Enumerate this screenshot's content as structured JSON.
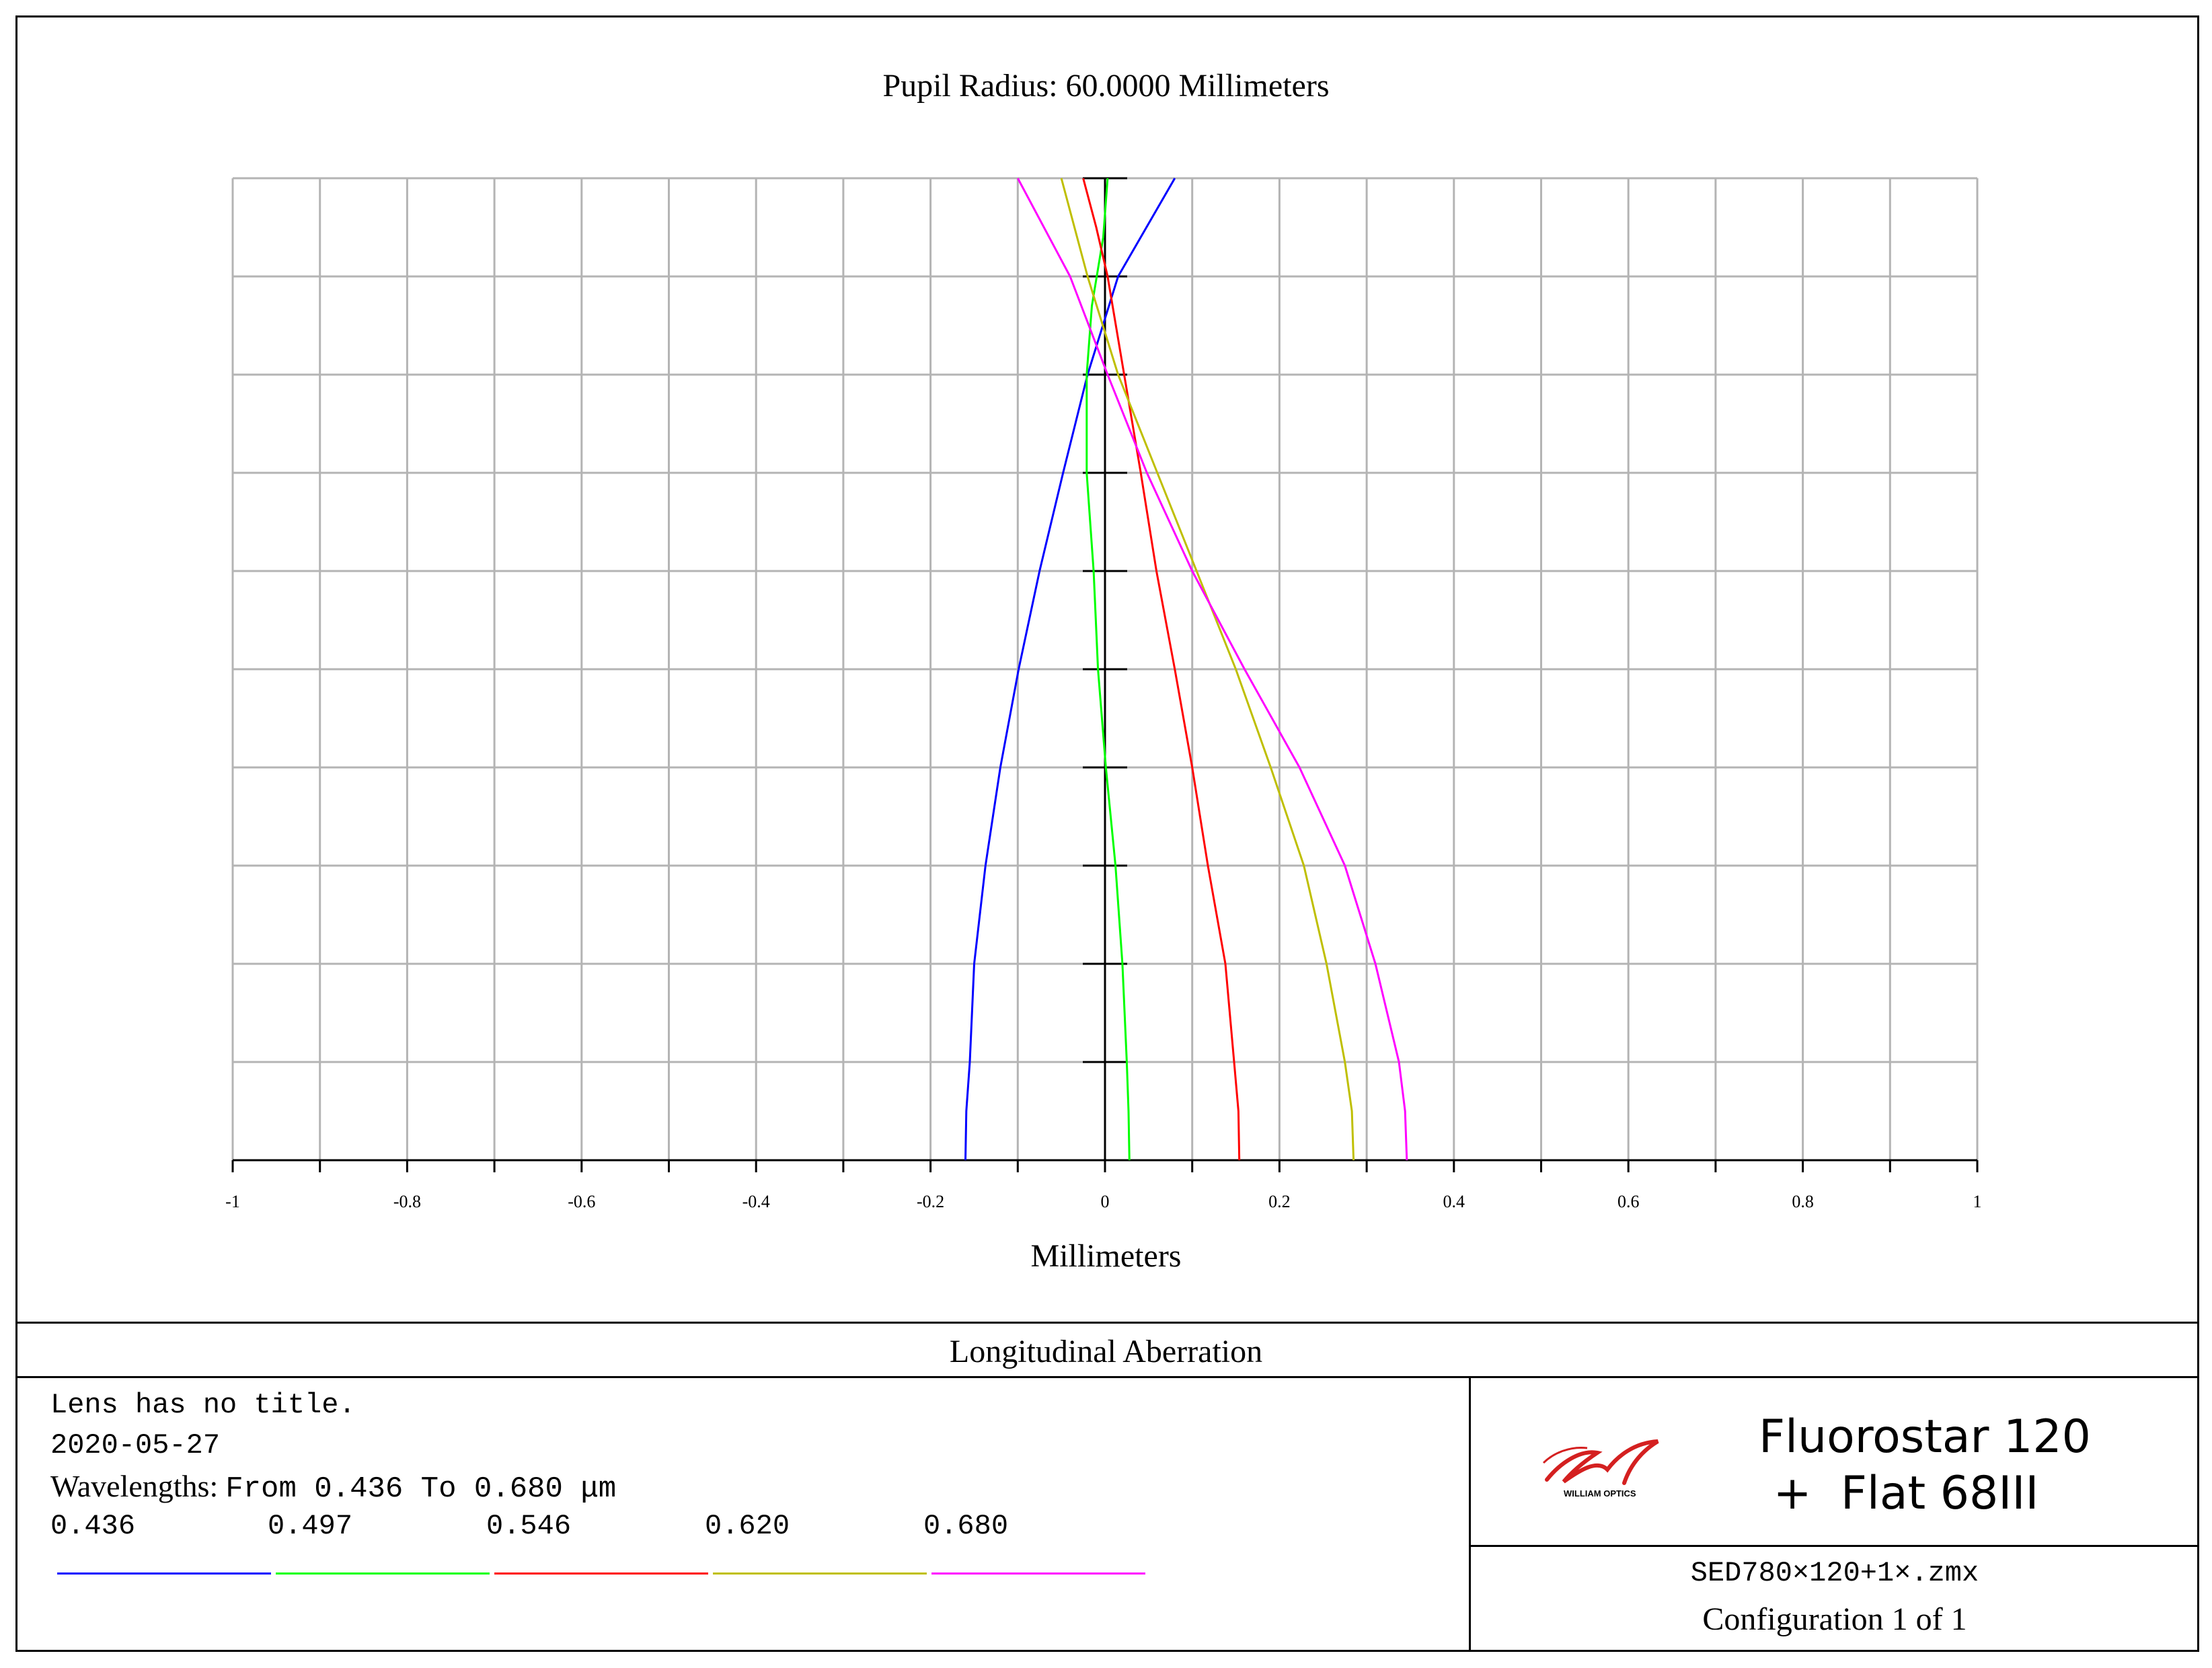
{
  "plot_title": "Pupil Radius:  60.0000  Millimeters",
  "chart_data": {
    "type": "line",
    "xlabel": "Millimeters",
    "ylabel": "",
    "xlim": [
      -1,
      1
    ],
    "ylim": [
      0,
      1
    ],
    "x_ticks": [
      "-1",
      "-0.8",
      "-0.6",
      "-0.4",
      "-0.2",
      "0",
      "0.2",
      "0.4",
      "0.6",
      "0.8",
      "1"
    ],
    "grid": true,
    "series": [
      {
        "name": "0.436",
        "color": "#0000ff",
        "points": [
          [
            -0.16,
            0
          ],
          [
            -0.159,
            0.05
          ],
          [
            -0.155,
            0.1
          ],
          [
            -0.15,
            0.2
          ],
          [
            -0.137,
            0.3
          ],
          [
            -0.12,
            0.4
          ],
          [
            -0.099,
            0.5
          ],
          [
            -0.075,
            0.6
          ],
          [
            -0.048,
            0.7
          ],
          [
            -0.02,
            0.8
          ],
          [
            0.015,
            0.9
          ],
          [
            0.08,
            1.0
          ]
        ]
      },
      {
        "name": "0.497",
        "color": "#00ff00",
        "points": [
          [
            0.028,
            0
          ],
          [
            0.027,
            0.05
          ],
          [
            0.025,
            0.1
          ],
          [
            0.02,
            0.2
          ],
          [
            0.012,
            0.3
          ],
          [
            0.001,
            0.4
          ],
          [
            -0.008,
            0.5
          ],
          [
            -0.013,
            0.6
          ],
          [
            -0.021,
            0.7
          ],
          [
            -0.021,
            0.8
          ],
          [
            -0.015,
            0.87
          ],
          [
            -0.002,
            0.94
          ],
          [
            0.003,
            1.0
          ]
        ]
      },
      {
        "name": "0.546",
        "color": "#ff0000",
        "points": [
          [
            0.154,
            0
          ],
          [
            0.153,
            0.05
          ],
          [
            0.148,
            0.1
          ],
          [
            0.138,
            0.2
          ],
          [
            0.118,
            0.3
          ],
          [
            0.1,
            0.4
          ],
          [
            0.08,
            0.5
          ],
          [
            0.059,
            0.6
          ],
          [
            0.041,
            0.7
          ],
          [
            0.022,
            0.8
          ],
          [
            0.003,
            0.9
          ],
          [
            -0.01,
            0.95
          ],
          [
            -0.025,
            1.0
          ]
        ]
      },
      {
        "name": "0.620",
        "color": "#bfbf00",
        "points": [
          [
            0.285,
            0
          ],
          [
            0.283,
            0.05
          ],
          [
            0.275,
            0.1
          ],
          [
            0.254,
            0.2
          ],
          [
            0.228,
            0.3
          ],
          [
            0.19,
            0.4
          ],
          [
            0.15,
            0.5
          ],
          [
            0.105,
            0.6
          ],
          [
            0.06,
            0.7
          ],
          [
            0.015,
            0.8
          ],
          [
            -0.02,
            0.9
          ],
          [
            -0.05,
            1.0
          ]
        ]
      },
      {
        "name": "0.680",
        "color": "#ff00ff",
        "points": [
          [
            0.346,
            0
          ],
          [
            0.344,
            0.05
          ],
          [
            0.337,
            0.1
          ],
          [
            0.31,
            0.2
          ],
          [
            0.275,
            0.3
          ],
          [
            0.223,
            0.4
          ],
          [
            0.16,
            0.5
          ],
          [
            0.1,
            0.6
          ],
          [
            0.048,
            0.7
          ],
          [
            0.003,
            0.8
          ],
          [
            -0.04,
            0.9
          ],
          [
            -0.1,
            1.0
          ]
        ]
      }
    ]
  },
  "footer": {
    "title": "Longitudinal Aberration",
    "lens_title": "Lens has no title.",
    "date": "2020-05-27",
    "wavelengths_label": "Wavelengths:",
    "wavelengths_range": "From 0.436 To 0.680 μm",
    "legend": [
      {
        "label": "0.436",
        "color": "#0000ff"
      },
      {
        "label": "0.497",
        "color": "#00ff00"
      },
      {
        "label": "0.546",
        "color": "#ff0000"
      },
      {
        "label": "0.620",
        "color": "#bfbf00"
      },
      {
        "label": "0.680",
        "color": "#ff00ff"
      }
    ],
    "logo_text": "WILLIAM OPTICS",
    "design_title": "Fluorostar 120\n +  Flat 68III",
    "file_name": "SED780×120+1×.zmx",
    "configuration": "Configuration 1 of 1"
  }
}
